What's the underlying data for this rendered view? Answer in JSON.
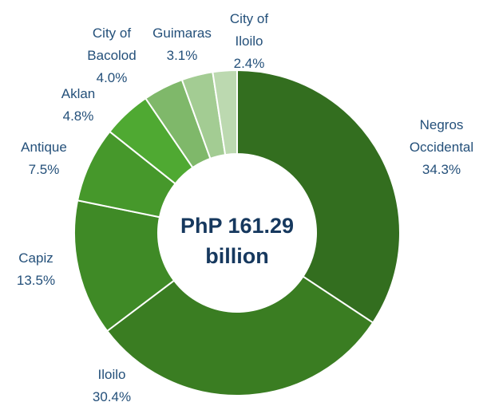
{
  "chart_data": {
    "type": "donut",
    "categories": [
      "Negros\nOccidental",
      "Iloilo",
      "Capiz",
      "Antique",
      "Aklan",
      "City of\nBacolod",
      "Guimaras",
      "City of\nIloilo"
    ],
    "values": [
      34.3,
      30.4,
      13.5,
      7.5,
      4.8,
      4.0,
      3.1,
      2.4
    ],
    "value_labels": [
      "34.3%",
      "30.4%",
      "13.5%",
      "7.5%",
      "4.8%",
      "4.0%",
      "3.1%",
      "2.4%"
    ],
    "colors": [
      "#336e1f",
      "#3a7d22",
      "#3f8a26",
      "#46982b",
      "#4fa932",
      "#7fb86a",
      "#a3cc93",
      "#bcd9b0"
    ],
    "center_label": "PhP 161.29\nbillion"
  }
}
